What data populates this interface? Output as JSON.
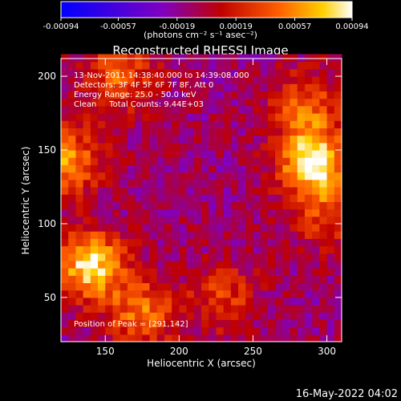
{
  "chart_data": {
    "type": "heatmap",
    "title": "Reconstructed RHESSI Image",
    "xlabel": "Heliocentric X (arcsec)",
    "ylabel": "Heliocentric Y (arcsec)",
    "xlim": [
      120,
      310
    ],
    "ylim": [
      20,
      212
    ],
    "xticks": [
      150,
      200,
      250,
      300
    ],
    "yticks": [
      50,
      100,
      150,
      200
    ],
    "colorbar": {
      "ticks": [
        -0.00094,
        -0.00057,
        -0.00019,
        0.00019,
        0.00057,
        0.00094
      ],
      "tick_labels": [
        "-0.00094",
        "-0.00057",
        "-0.00019",
        "0.00019",
        "0.00057",
        "0.00094"
      ],
      "units_label": "(photons cm⁻² s⁻¹ asec⁻²)",
      "colors": [
        "#0000ff",
        "#8000c0",
        "#c00000",
        "#ff6000",
        "#ffd000",
        "#ffffff"
      ]
    },
    "annotations": [
      "13-Nov-2011 14:38:40.000 to 14:39:08.000",
      "Detectors: 3F 4F 5F 6F 7F 8F, Att 0",
      "Energy Range: 25.0 - 50.0 keV",
      "Clean     Total Counts: 9.44E+03"
    ],
    "peak_label": "Position of Peak = [291,142]",
    "peaks": [
      {
        "x": 291,
        "y": 142,
        "value": 0.00094
      },
      {
        "x": 140,
        "y": 72,
        "value": 0.00085
      },
      {
        "x": 124,
        "y": 143,
        "value": 0.0006
      },
      {
        "x": 175,
        "y": 40,
        "value": 0.0005
      },
      {
        "x": 160,
        "y": 200,
        "value": 0.00045
      },
      {
        "x": 285,
        "y": 180,
        "value": 0.0004
      },
      {
        "x": 300,
        "y": 105,
        "value": 0.0003
      },
      {
        "x": 230,
        "y": 50,
        "value": 0.0003
      }
    ],
    "background_value": -0.0001
  },
  "footer": {
    "date": "16-May-2022 04:02"
  }
}
